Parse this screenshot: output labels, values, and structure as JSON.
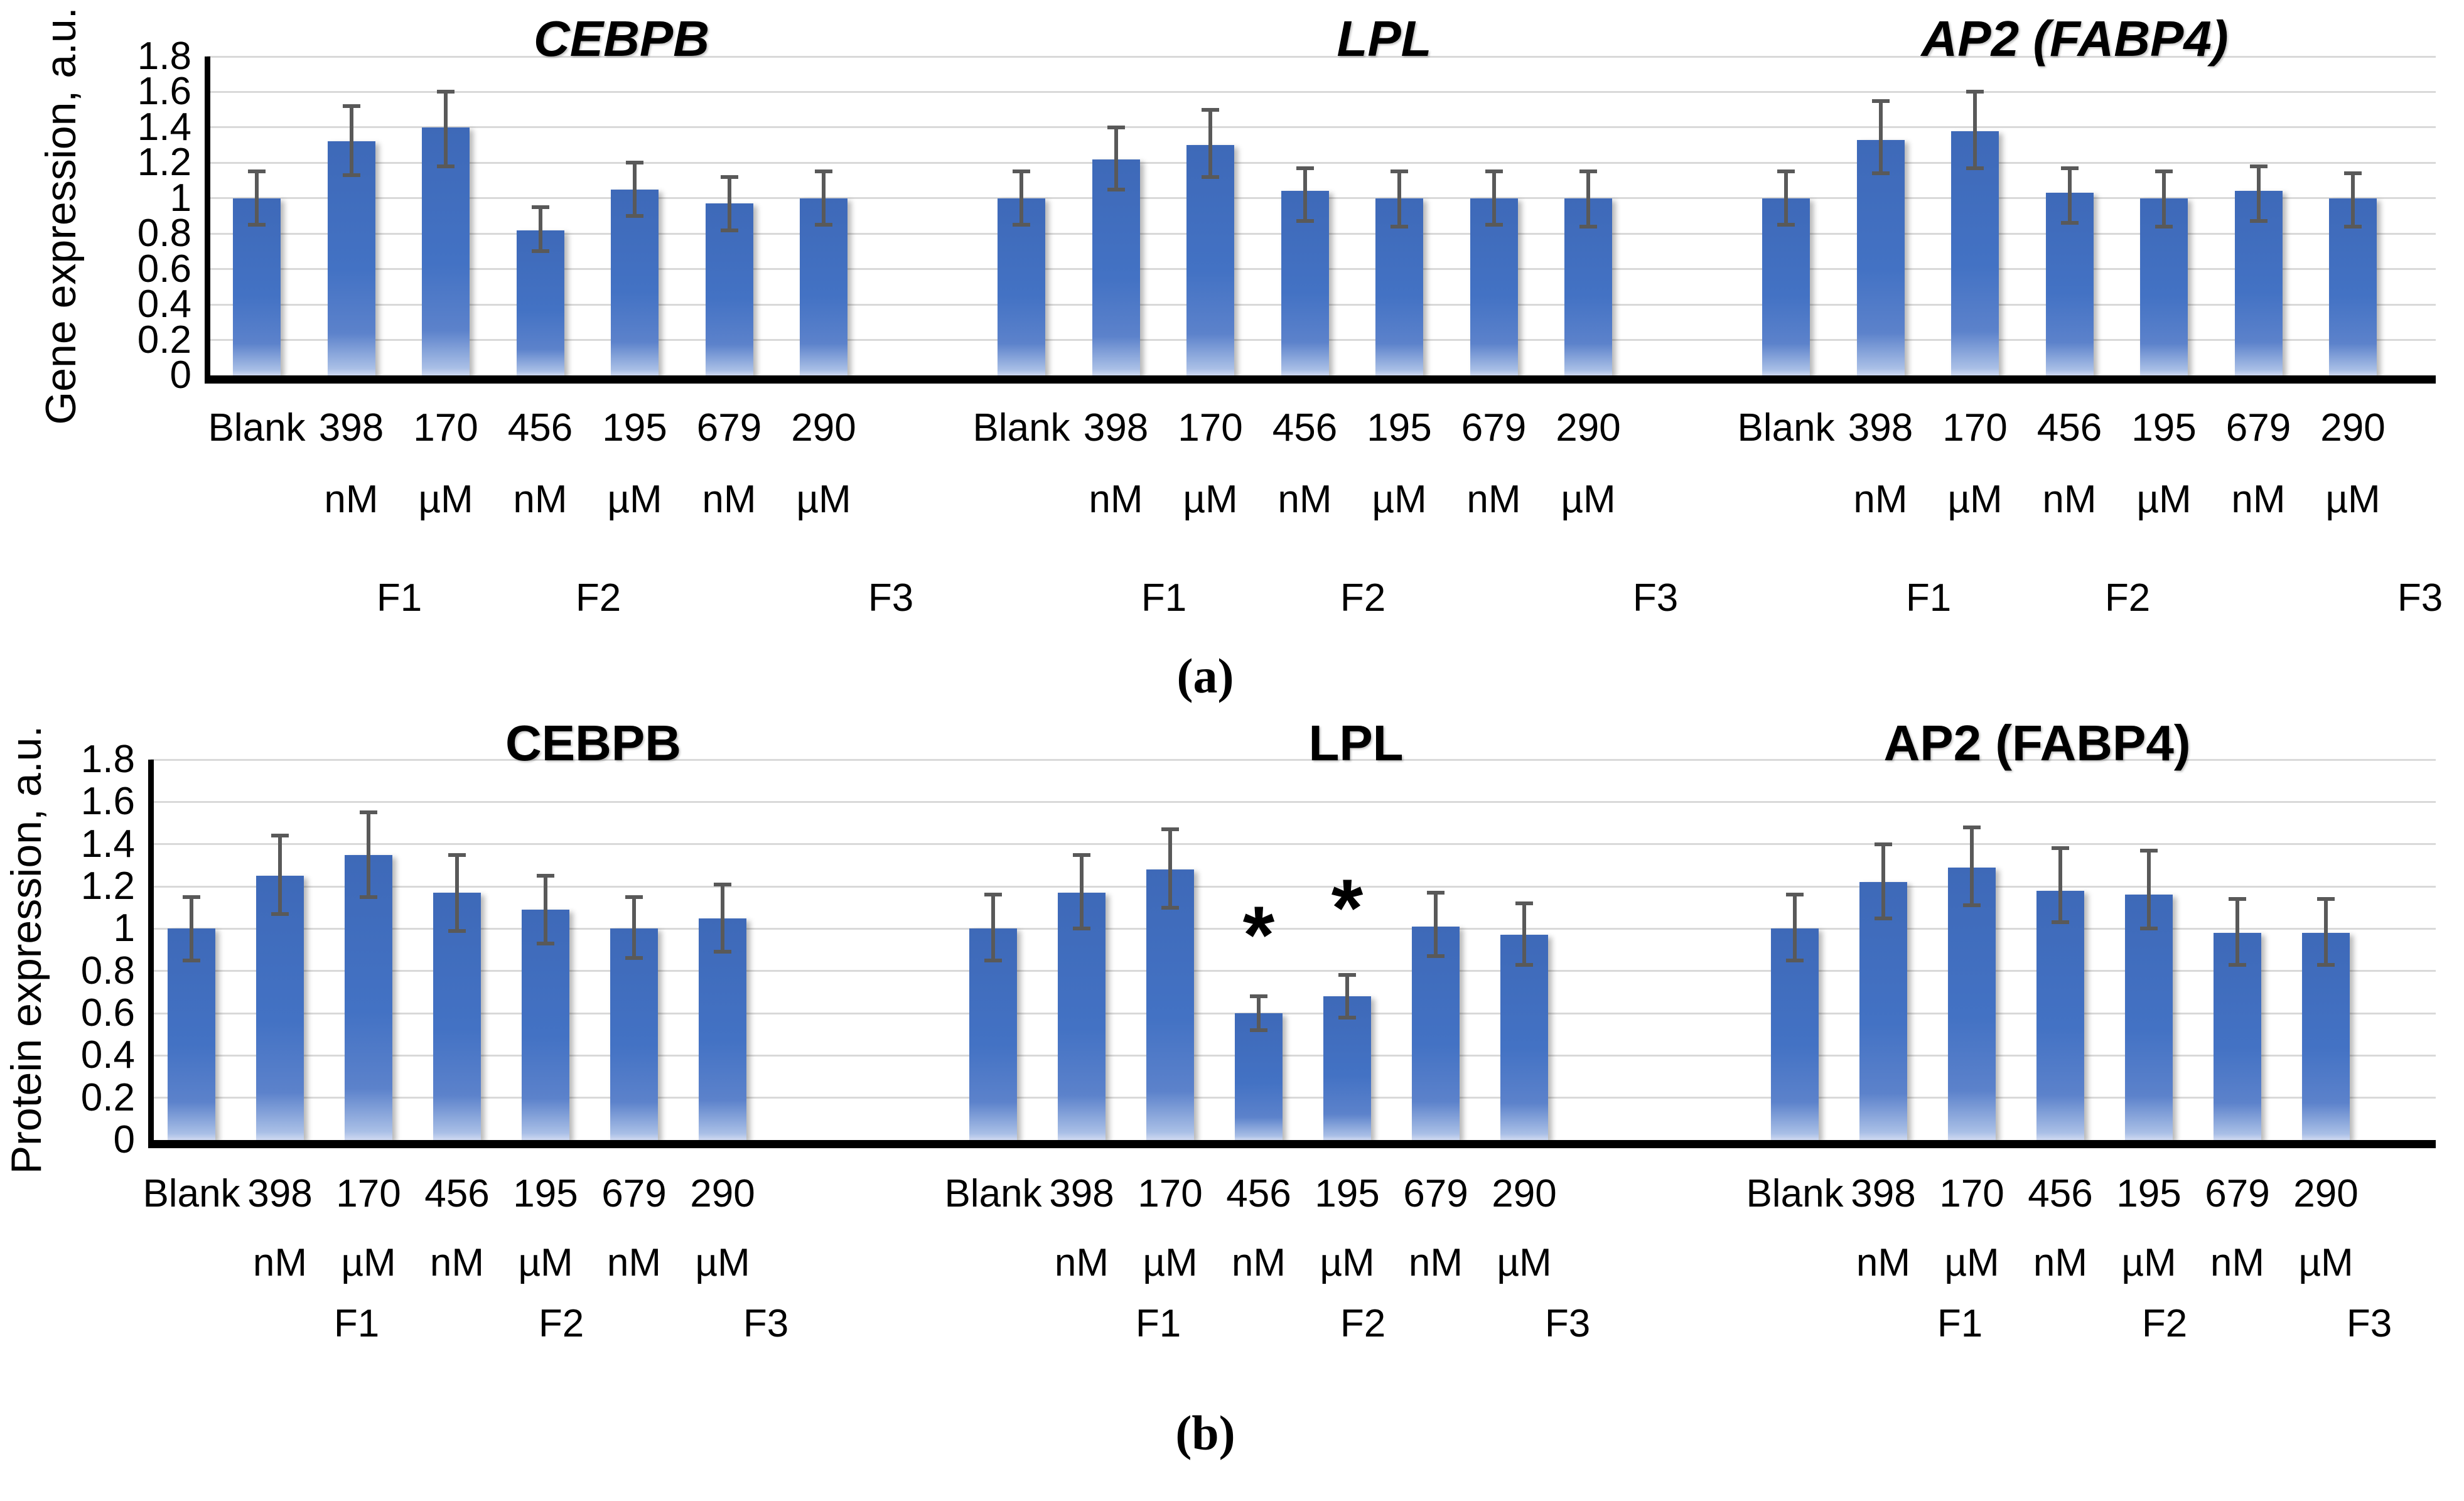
{
  "figure": {
    "panel_a_label": "(a)",
    "panel_b_label": "(b)"
  },
  "axis": {
    "tick_labels": [
      "0",
      "0.2",
      "0.4",
      "0.6",
      "0.8",
      "1",
      "1.2",
      "1.4",
      "1.6",
      "1.8"
    ],
    "tick_values": [
      0,
      0.2,
      0.4,
      0.6,
      0.8,
      1,
      1.2,
      1.4,
      1.6,
      1.8
    ],
    "max_value": 1.8
  },
  "categories": [
    "Blank",
    "398 nM",
    "170 µM",
    "456 nM",
    "195 µM",
    "679 nM",
    "290 µM"
  ],
  "category_line1": [
    "Blank",
    "398",
    "170",
    "456",
    "195",
    "679",
    "290"
  ],
  "category_line2": [
    "",
    "nM",
    "µM",
    "nM",
    "µM",
    "nM",
    "µM"
  ],
  "group_labels": [
    "F1",
    "F2",
    "F3"
  ],
  "colors": {
    "bar_blue": "#4472c4",
    "grid_gray": "#d9d9d9",
    "error_gray": "#595959",
    "axis_black": "#000000"
  },
  "chart_data": [
    {
      "panel": "a",
      "type": "bar",
      "ylabel": "Gene expression, a.u.",
      "ylim": [
        0,
        1.8
      ],
      "grid": true,
      "legend": "none",
      "title_style": "bold-italic",
      "categories": [
        "Blank",
        "398 nM",
        "170 µM",
        "456 nM",
        "195 µM",
        "679 nM",
        "290 µM"
      ],
      "charts": [
        {
          "title": "CEBPB",
          "values": [
            1.0,
            1.32,
            1.4,
            0.82,
            1.05,
            0.97,
            1.0
          ],
          "err_low": [
            0.85,
            1.13,
            1.18,
            0.7,
            0.9,
            0.82,
            0.85
          ],
          "err_high": [
            1.15,
            1.52,
            1.6,
            0.95,
            1.2,
            1.12,
            1.15
          ],
          "stars": []
        },
        {
          "title": "LPL",
          "values": [
            1.0,
            1.22,
            1.3,
            1.04,
            1.0,
            1.0,
            1.0
          ],
          "err_low": [
            0.85,
            1.05,
            1.12,
            0.87,
            0.84,
            0.85,
            0.84
          ],
          "err_high": [
            1.15,
            1.4,
            1.5,
            1.17,
            1.15,
            1.15,
            1.15
          ],
          "stars": []
        },
        {
          "title": "AP2 (FABP4)",
          "values": [
            1.0,
            1.33,
            1.38,
            1.03,
            1.0,
            1.04,
            1.0
          ],
          "err_low": [
            0.85,
            1.14,
            1.17,
            0.86,
            0.84,
            0.87,
            0.84
          ],
          "err_high": [
            1.15,
            1.55,
            1.6,
            1.17,
            1.15,
            1.18,
            1.14
          ],
          "stars": []
        }
      ]
    },
    {
      "panel": "b",
      "type": "bar",
      "ylabel": "Protein expression, a.u.",
      "ylim": [
        0,
        1.8
      ],
      "grid": true,
      "legend": "none",
      "title_style": "bold",
      "categories": [
        "Blank",
        "398 nM",
        "170 µM",
        "456 nM",
        "195 µM",
        "679 nM",
        "290 µM"
      ],
      "charts": [
        {
          "title": "CEBPB",
          "values": [
            1.0,
            1.25,
            1.35,
            1.17,
            1.09,
            1.0,
            1.05
          ],
          "err_low": [
            0.85,
            1.07,
            1.15,
            0.99,
            0.93,
            0.86,
            0.89
          ],
          "err_high": [
            1.15,
            1.44,
            1.55,
            1.35,
            1.25,
            1.15,
            1.21
          ],
          "stars": []
        },
        {
          "title": "LPL",
          "values": [
            1.0,
            1.17,
            1.28,
            0.6,
            0.68,
            1.01,
            0.97
          ],
          "err_low": [
            0.85,
            1.0,
            1.1,
            0.52,
            0.58,
            0.87,
            0.83
          ],
          "err_high": [
            1.16,
            1.35,
            1.47,
            0.68,
            0.78,
            1.17,
            1.12
          ],
          "stars": [
            {
              "bar_index": 3,
              "symbol": "*",
              "y": 0.97
            },
            {
              "bar_index": 4,
              "symbol": "*",
              "y": 1.1
            }
          ]
        },
        {
          "title": "AP2 (FABP4)",
          "values": [
            1.0,
            1.22,
            1.29,
            1.18,
            1.16,
            0.98,
            0.98
          ],
          "err_low": [
            0.85,
            1.05,
            1.11,
            1.03,
            1.0,
            0.83,
            0.83
          ],
          "err_high": [
            1.16,
            1.4,
            1.48,
            1.38,
            1.37,
            1.14,
            1.14
          ],
          "stars": []
        }
      ]
    }
  ]
}
